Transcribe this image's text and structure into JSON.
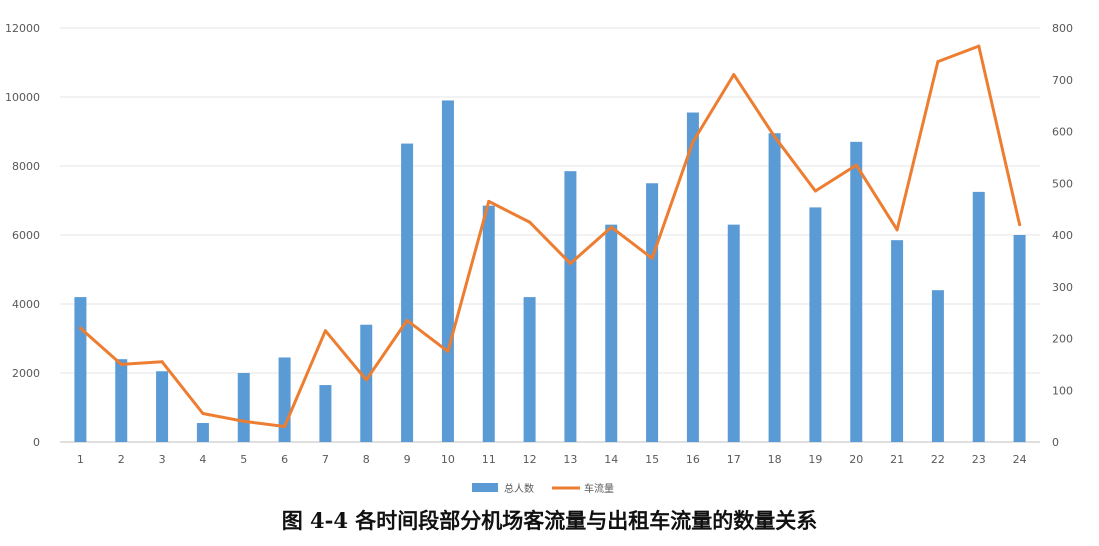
{
  "chart_data": {
    "type": "bar",
    "categories": [
      "1",
      "2",
      "3",
      "4",
      "5",
      "6",
      "7",
      "8",
      "9",
      "10",
      "11",
      "12",
      "13",
      "14",
      "15",
      "16",
      "17",
      "18",
      "19",
      "20",
      "21",
      "22",
      "23",
      "24"
    ],
    "series": [
      {
        "name": "总人数",
        "type": "bar",
        "axis": "left",
        "color": "#5B9BD5",
        "values": [
          4200,
          2400,
          2050,
          550,
          2000,
          2450,
          1650,
          3400,
          8650,
          9900,
          6850,
          4200,
          7850,
          6300,
          7500,
          9550,
          6300,
          8950,
          6800,
          8700,
          5850,
          4400,
          7250,
          6000
        ]
      },
      {
        "name": "车流量",
        "type": "line",
        "axis": "right",
        "color": "#ED7D31",
        "values": [
          220,
          150,
          155,
          55,
          40,
          30,
          215,
          120,
          235,
          175,
          465,
          425,
          345,
          415,
          355,
          580,
          710,
          590,
          485,
          535,
          410,
          735,
          765,
          420
        ]
      }
    ],
    "y_left": {
      "lim": [
        0,
        12000
      ],
      "ticks": [
        "0",
        "2000",
        "4000",
        "6000",
        "8000",
        "10000",
        "12000"
      ]
    },
    "y_right": {
      "lim": [
        0,
        800
      ],
      "ticks": [
        "0",
        "100",
        "200",
        "300",
        "400",
        "500",
        "600",
        "700",
        "800"
      ]
    },
    "grid": true,
    "legend": "bottom",
    "title": "",
    "xlabel": "",
    "ylabel": ""
  },
  "caption": "图 4-4  各时间段部分机场客流量与出租车流量的数量关系"
}
